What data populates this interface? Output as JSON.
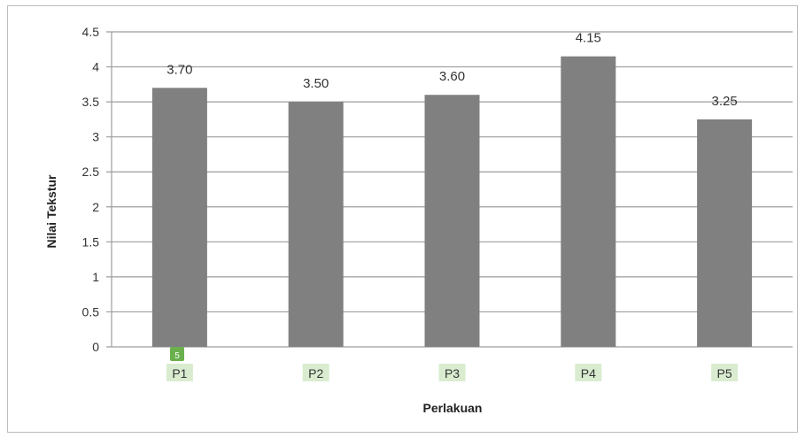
{
  "chart_data": {
    "type": "bar",
    "categories": [
      "P1",
      "P2",
      "P3",
      "P4",
      "P5"
    ],
    "values": [
      3.7,
      3.5,
      3.6,
      4.15,
      3.25
    ],
    "data_labels": [
      "3.70",
      "3.50",
      "3.60",
      "4.15",
      "3.25"
    ],
    "title": "",
    "xlabel": "Perlakuan",
    "ylabel": "Nilai Tekstur",
    "ylim": [
      0,
      4.5
    ],
    "yticks": [
      "0",
      "0.5",
      "1",
      "1.5",
      "2",
      "2.5",
      "3",
      "3.5",
      "4",
      "4.5"
    ],
    "grid": true,
    "legend": "none",
    "colors": {
      "bar": "#808080",
      "grid": "#9e9e9e",
      "category_highlight": "#d9ecd0",
      "badge": "#6ab04c"
    },
    "badge": "5"
  }
}
